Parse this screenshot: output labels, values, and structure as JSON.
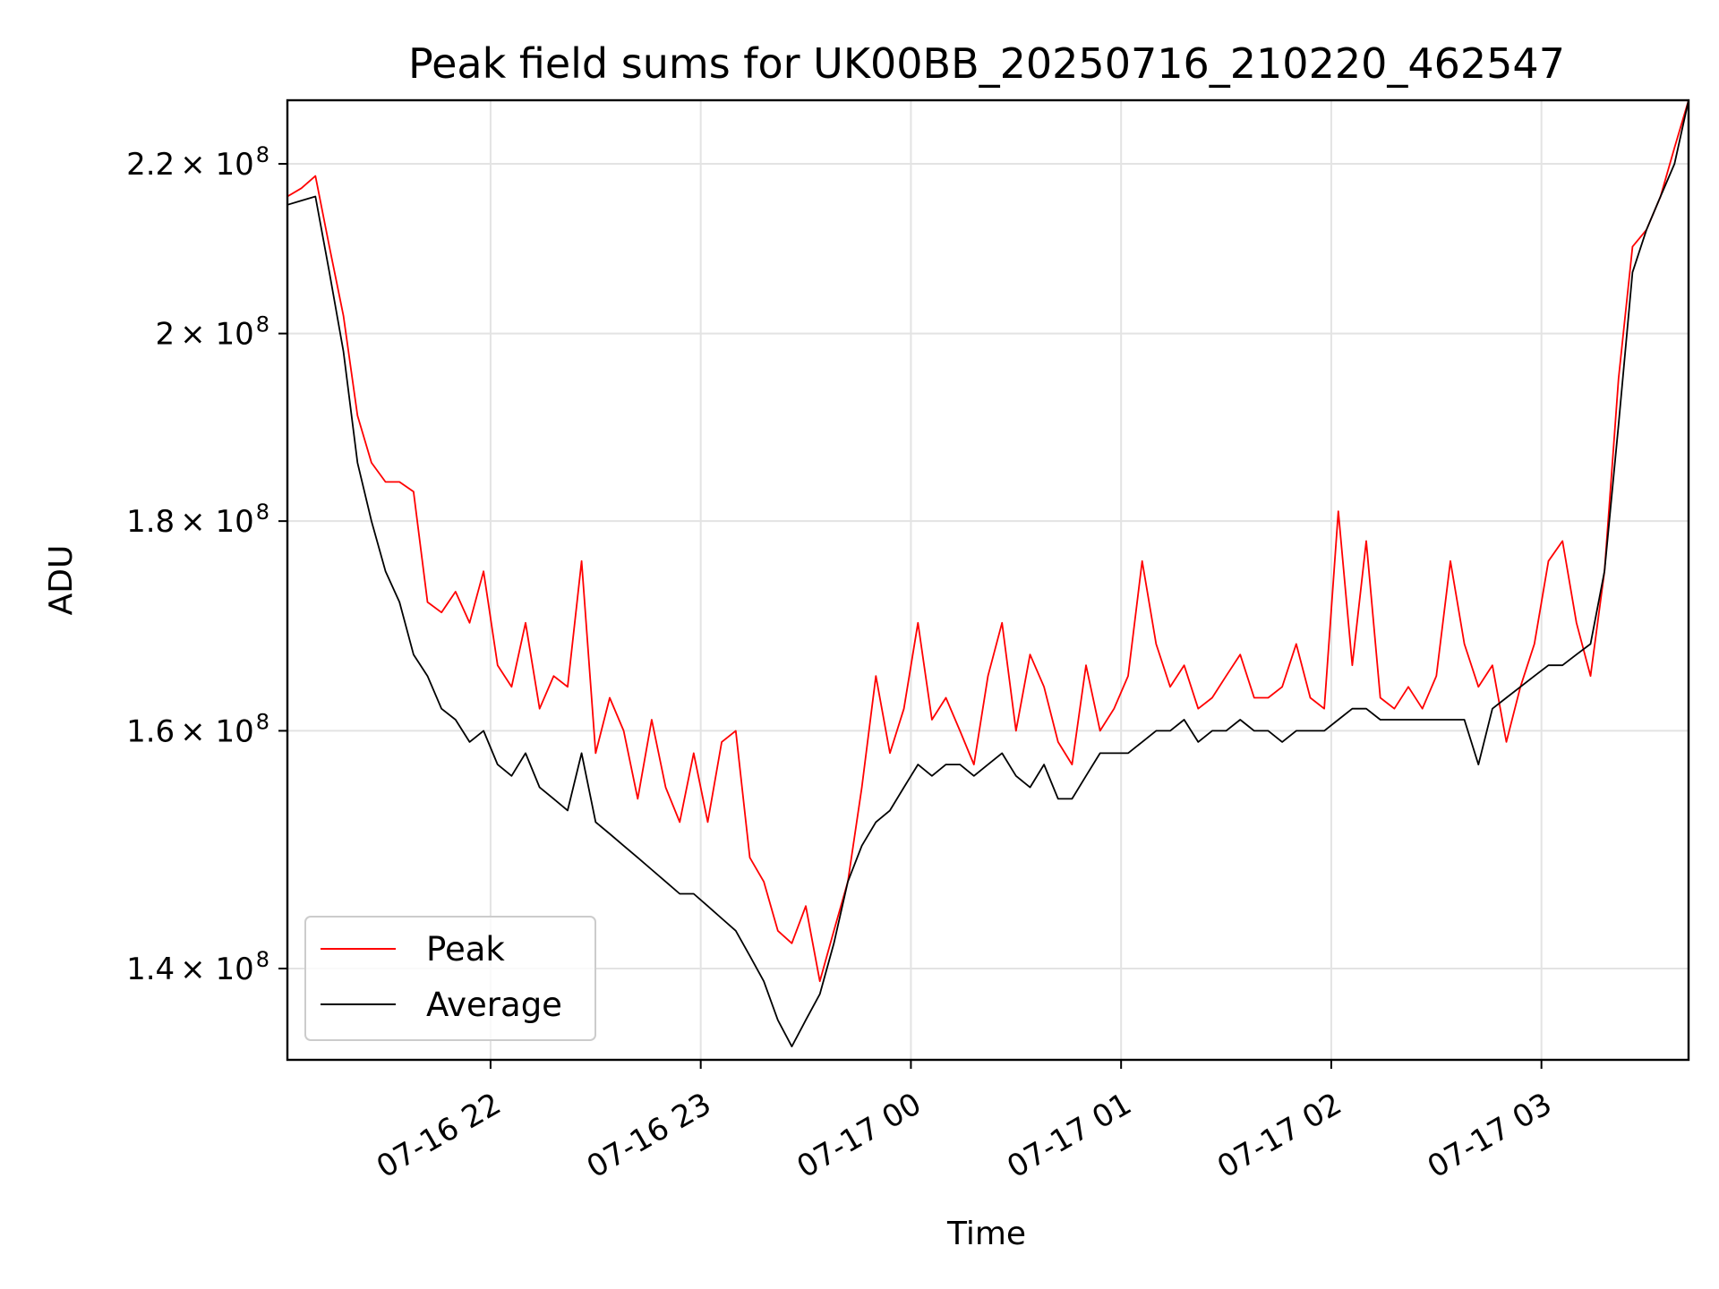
{
  "chart_data": {
    "type": "line",
    "title": "Peak field sums for UK00BB_20250716_210220_462547",
    "xlabel": "Time",
    "ylabel": "ADU",
    "yscale": "log",
    "grid": true,
    "legend_position": "lower-left",
    "xlim": [
      "2025-07-16 21:02",
      "2025-07-17 03:42"
    ],
    "ylim": [
      133000000,
      228000000
    ],
    "x_ticks": [
      {
        "value": "2025-07-16 22:00",
        "label": "07-16 22"
      },
      {
        "value": "2025-07-16 23:00",
        "label": "07-16 23"
      },
      {
        "value": "2025-07-17 00:00",
        "label": "07-17 00"
      },
      {
        "value": "2025-07-17 01:00",
        "label": "07-17 01"
      },
      {
        "value": "2025-07-17 02:00",
        "label": "07-17 02"
      },
      {
        "value": "2025-07-17 03:00",
        "label": "07-17 03"
      }
    ],
    "y_ticks": [
      {
        "value": 140000000,
        "mantissa": "1.4",
        "base": "× 10",
        "exp": "8"
      },
      {
        "value": 160000000,
        "mantissa": "1.6",
        "base": "× 10",
        "exp": "8"
      },
      {
        "value": 180000000,
        "mantissa": "1.8",
        "base": "× 10",
        "exp": "8"
      },
      {
        "value": 200000000,
        "mantissa": "2",
        "base": "× 10",
        "exp": "8"
      },
      {
        "value": 220000000,
        "mantissa": "2.2",
        "base": "× 10",
        "exp": "8"
      }
    ],
    "series": [
      {
        "name": "Peak",
        "color": "#ff0000",
        "x": [
          "2025-07-16 21:02",
          "2025-07-16 21:06",
          "2025-07-16 21:10",
          "2025-07-16 21:14",
          "2025-07-16 21:18",
          "2025-07-16 21:22",
          "2025-07-16 21:26",
          "2025-07-16 21:30",
          "2025-07-16 21:34",
          "2025-07-16 21:38",
          "2025-07-16 21:42",
          "2025-07-16 21:46",
          "2025-07-16 21:50",
          "2025-07-16 21:54",
          "2025-07-16 21:58",
          "2025-07-16 22:02",
          "2025-07-16 22:06",
          "2025-07-16 22:10",
          "2025-07-16 22:14",
          "2025-07-16 22:18",
          "2025-07-16 22:22",
          "2025-07-16 22:26",
          "2025-07-16 22:30",
          "2025-07-16 22:34",
          "2025-07-16 22:38",
          "2025-07-16 22:42",
          "2025-07-16 22:46",
          "2025-07-16 22:50",
          "2025-07-16 22:54",
          "2025-07-16 22:58",
          "2025-07-16 23:02",
          "2025-07-16 23:06",
          "2025-07-16 23:10",
          "2025-07-16 23:14",
          "2025-07-16 23:18",
          "2025-07-16 23:22",
          "2025-07-16 23:26",
          "2025-07-16 23:30",
          "2025-07-16 23:34",
          "2025-07-16 23:38",
          "2025-07-16 23:42",
          "2025-07-16 23:46",
          "2025-07-16 23:50",
          "2025-07-16 23:54",
          "2025-07-16 23:58",
          "2025-07-17 00:02",
          "2025-07-17 00:06",
          "2025-07-17 00:10",
          "2025-07-17 00:14",
          "2025-07-17 00:18",
          "2025-07-17 00:22",
          "2025-07-17 00:26",
          "2025-07-17 00:30",
          "2025-07-17 00:34",
          "2025-07-17 00:38",
          "2025-07-17 00:42",
          "2025-07-17 00:46",
          "2025-07-17 00:50",
          "2025-07-17 00:54",
          "2025-07-17 00:58",
          "2025-07-17 01:02",
          "2025-07-17 01:06",
          "2025-07-17 01:10",
          "2025-07-17 01:14",
          "2025-07-17 01:18",
          "2025-07-17 01:22",
          "2025-07-17 01:26",
          "2025-07-17 01:30",
          "2025-07-17 01:34",
          "2025-07-17 01:38",
          "2025-07-17 01:42",
          "2025-07-17 01:46",
          "2025-07-17 01:50",
          "2025-07-17 01:54",
          "2025-07-17 01:58",
          "2025-07-17 02:02",
          "2025-07-17 02:06",
          "2025-07-17 02:10",
          "2025-07-17 02:14",
          "2025-07-17 02:18",
          "2025-07-17 02:22",
          "2025-07-17 02:26",
          "2025-07-17 02:30",
          "2025-07-17 02:34",
          "2025-07-17 02:38",
          "2025-07-17 02:42",
          "2025-07-17 02:46",
          "2025-07-17 02:50",
          "2025-07-17 02:54",
          "2025-07-17 02:58",
          "2025-07-17 03:02",
          "2025-07-17 03:06",
          "2025-07-17 03:10",
          "2025-07-17 03:14",
          "2025-07-17 03:18",
          "2025-07-17 03:22",
          "2025-07-17 03:26",
          "2025-07-17 03:30",
          "2025-07-17 03:34",
          "2025-07-17 03:38",
          "2025-07-17 03:42"
        ],
        "values": [
          216000000,
          217000000,
          218500000,
          210000000,
          202000000,
          191000000,
          186000000,
          184000000,
          184000000,
          183000000,
          172000000,
          171000000,
          173000000,
          170000000,
          175000000,
          166000000,
          164000000,
          170000000,
          162000000,
          165000000,
          164000000,
          176000000,
          158000000,
          163000000,
          160000000,
          154000000,
          161000000,
          155000000,
          152000000,
          158000000,
          152000000,
          159000000,
          160000000,
          149000000,
          147000000,
          143000000,
          142000000,
          145000000,
          139000000,
          143000000,
          147000000,
          155000000,
          165000000,
          158000000,
          162000000,
          170000000,
          161000000,
          163000000,
          160000000,
          157000000,
          165000000,
          170000000,
          160000000,
          167000000,
          164000000,
          159000000,
          157000000,
          166000000,
          160000000,
          162000000,
          165000000,
          176000000,
          168000000,
          164000000,
          166000000,
          162000000,
          163000000,
          165000000,
          167000000,
          163000000,
          163000000,
          164000000,
          168000000,
          163000000,
          162000000,
          181000000,
          166000000,
          178000000,
          163000000,
          162000000,
          164000000,
          162000000,
          165000000,
          176000000,
          168000000,
          164000000,
          166000000,
          159000000,
          164000000,
          168000000,
          176000000,
          178000000,
          170000000,
          165000000,
          175000000,
          195000000,
          210000000,
          212000000,
          216000000,
          222000000,
          228000000
        ]
      },
      {
        "name": "Average",
        "color": "#000000",
        "x": [
          "2025-07-16 21:02",
          "2025-07-16 21:06",
          "2025-07-16 21:10",
          "2025-07-16 21:14",
          "2025-07-16 21:18",
          "2025-07-16 21:22",
          "2025-07-16 21:26",
          "2025-07-16 21:30",
          "2025-07-16 21:34",
          "2025-07-16 21:38",
          "2025-07-16 21:42",
          "2025-07-16 21:46",
          "2025-07-16 21:50",
          "2025-07-16 21:54",
          "2025-07-16 21:58",
          "2025-07-16 22:02",
          "2025-07-16 22:06",
          "2025-07-16 22:10",
          "2025-07-16 22:14",
          "2025-07-16 22:18",
          "2025-07-16 22:22",
          "2025-07-16 22:26",
          "2025-07-16 22:30",
          "2025-07-16 22:34",
          "2025-07-16 22:38",
          "2025-07-16 22:42",
          "2025-07-16 22:46",
          "2025-07-16 22:50",
          "2025-07-16 22:54",
          "2025-07-16 22:58",
          "2025-07-16 23:02",
          "2025-07-16 23:06",
          "2025-07-16 23:10",
          "2025-07-16 23:14",
          "2025-07-16 23:18",
          "2025-07-16 23:22",
          "2025-07-16 23:26",
          "2025-07-16 23:30",
          "2025-07-16 23:34",
          "2025-07-16 23:38",
          "2025-07-16 23:42",
          "2025-07-16 23:46",
          "2025-07-16 23:50",
          "2025-07-16 23:54",
          "2025-07-16 23:58",
          "2025-07-17 00:02",
          "2025-07-17 00:06",
          "2025-07-17 00:10",
          "2025-07-17 00:14",
          "2025-07-17 00:18",
          "2025-07-17 00:22",
          "2025-07-17 00:26",
          "2025-07-17 00:30",
          "2025-07-17 00:34",
          "2025-07-17 00:38",
          "2025-07-17 00:42",
          "2025-07-17 00:46",
          "2025-07-17 00:50",
          "2025-07-17 00:54",
          "2025-07-17 00:58",
          "2025-07-17 01:02",
          "2025-07-17 01:06",
          "2025-07-17 01:10",
          "2025-07-17 01:14",
          "2025-07-17 01:18",
          "2025-07-17 01:22",
          "2025-07-17 01:26",
          "2025-07-17 01:30",
          "2025-07-17 01:34",
          "2025-07-17 01:38",
          "2025-07-17 01:42",
          "2025-07-17 01:46",
          "2025-07-17 01:50",
          "2025-07-17 01:54",
          "2025-07-17 01:58",
          "2025-07-17 02:02",
          "2025-07-17 02:06",
          "2025-07-17 02:10",
          "2025-07-17 02:14",
          "2025-07-17 02:18",
          "2025-07-17 02:22",
          "2025-07-17 02:26",
          "2025-07-17 02:30",
          "2025-07-17 02:34",
          "2025-07-17 02:38",
          "2025-07-17 02:42",
          "2025-07-17 02:46",
          "2025-07-17 02:50",
          "2025-07-17 02:54",
          "2025-07-17 02:58",
          "2025-07-17 03:02",
          "2025-07-17 03:06",
          "2025-07-17 03:10",
          "2025-07-17 03:14",
          "2025-07-17 03:18",
          "2025-07-17 03:22",
          "2025-07-17 03:26",
          "2025-07-17 03:30",
          "2025-07-17 03:34",
          "2025-07-17 03:38",
          "2025-07-17 03:42"
        ],
        "values": [
          215000000,
          215500000,
          216000000,
          207000000,
          198000000,
          186000000,
          180000000,
          175000000,
          172000000,
          167000000,
          165000000,
          162000000,
          161000000,
          159000000,
          160000000,
          157000000,
          156000000,
          158000000,
          155000000,
          154000000,
          153000000,
          158000000,
          152000000,
          151000000,
          150000000,
          149000000,
          148000000,
          147000000,
          146000000,
          146000000,
          145000000,
          144000000,
          143000000,
          141000000,
          139000000,
          136000000,
          134000000,
          136000000,
          138000000,
          142000000,
          147000000,
          150000000,
          152000000,
          153000000,
          155000000,
          157000000,
          156000000,
          157000000,
          157000000,
          156000000,
          157000000,
          158000000,
          156000000,
          155000000,
          157000000,
          154000000,
          154000000,
          156000000,
          158000000,
          158000000,
          158000000,
          159000000,
          160000000,
          160000000,
          161000000,
          159000000,
          160000000,
          160000000,
          161000000,
          160000000,
          160000000,
          159000000,
          160000000,
          160000000,
          160000000,
          161000000,
          162000000,
          162000000,
          161000000,
          161000000,
          161000000,
          161000000,
          161000000,
          161000000,
          161000000,
          157000000,
          162000000,
          163000000,
          164000000,
          165000000,
          166000000,
          166000000,
          167000000,
          168000000,
          175000000,
          190000000,
          207000000,
          212000000,
          216000000,
          220000000,
          228000000
        ]
      }
    ]
  }
}
